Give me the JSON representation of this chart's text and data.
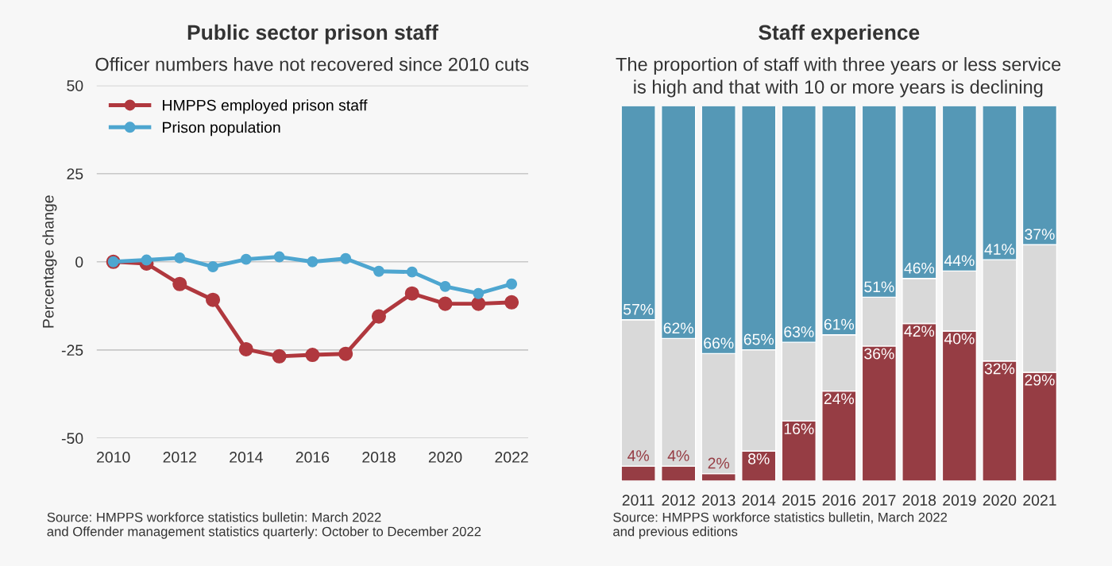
{
  "chart_data": [
    {
      "type": "line",
      "title": "Public sector prison staff",
      "subtitle": "Officer numbers have not recovered since 2010 cuts",
      "ylabel": "Percentage change",
      "x": [
        2010,
        2011,
        2012,
        2013,
        2014,
        2015,
        2016,
        2017,
        2018,
        2019,
        2020,
        2021,
        2022
      ],
      "series": [
        {
          "name": "HMPPS employed prison staff",
          "color": "#b0383e",
          "values": [
            0,
            -0.5,
            -6.3,
            -10.8,
            -24.8,
            -26.8,
            -26.4,
            -26.1,
            -15.5,
            -9,
            -11.9,
            -11.9,
            -11.5
          ]
        },
        {
          "name": "Prison population",
          "color": "#4ea6d0",
          "values": [
            0,
            0.5,
            1.1,
            -1.4,
            0.7,
            1.4,
            0,
            0.9,
            -2.7,
            -2.9,
            -7,
            -9,
            -6.3
          ]
        }
      ],
      "xlim": [
        2009.5,
        2022.5
      ],
      "xticks": [
        2010,
        2012,
        2014,
        2016,
        2018,
        2020,
        2022
      ],
      "ylim": [
        -50,
        50
      ],
      "yticks": [
        -50,
        -25,
        0,
        25,
        50
      ],
      "grid": "y",
      "legend": "top left",
      "marker": "circle",
      "line_style": "solid",
      "annotations": [
        "Source: HMPPS workforce statistics bulletin: March 2022\nand Offender management statistics quarterly: October to December 2022"
      ]
    },
    {
      "type": "bar",
      "stacked": true,
      "title": "Staff experience",
      "subtitle": "The proportion of staff with three years or less service\nis high and that with 10 or more years is declining",
      "categories": [
        "2011",
        "2012",
        "2013",
        "2014",
        "2015",
        "2016",
        "2017",
        "2018",
        "2019",
        "2020",
        "2021"
      ],
      "series": [
        {
          "color": "#963d44",
          "values": [
            4,
            4,
            2,
            8,
            16,
            24,
            36,
            42,
            40,
            32,
            29
          ],
          "value_labels": [
            "4%",
            "4%",
            "2%",
            "8%",
            "16%",
            "24%",
            "36%",
            "42%",
            "40%",
            "32%",
            "29%"
          ]
        },
        {
          "color": "#d9d9d9",
          "values": [
            39,
            34,
            32,
            27,
            21,
            15,
            13,
            12,
            16,
            27,
            34
          ]
        },
        {
          "color": "#5598b6",
          "values": [
            57,
            62,
            66,
            65,
            63,
            61,
            51,
            46,
            44,
            41,
            37
          ],
          "value_labels": [
            "57%",
            "62%",
            "66%",
            "65%",
            "63%",
            "61%",
            "51%",
            "46%",
            "44%",
            "41%",
            "37%"
          ]
        }
      ],
      "ylim": [
        0,
        100
      ],
      "tick_labels": "x",
      "annotations": [
        "Source: HMPPS workforce statistics bulletin, March 2022\nand previous editions"
      ]
    }
  ]
}
